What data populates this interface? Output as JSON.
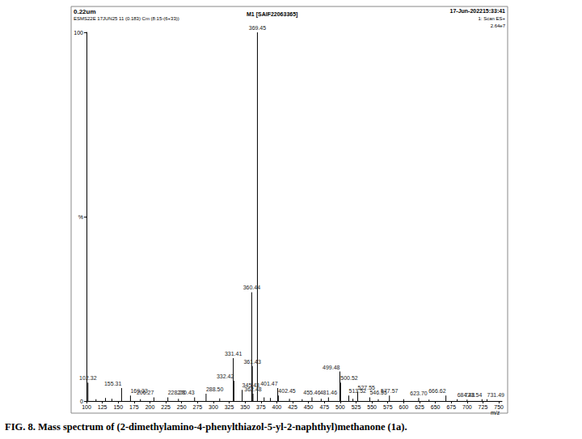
{
  "chart_data": {
    "type": "bar",
    "title": "M1 [SAIF22063365]",
    "annotations": [
      "0.22um",
      "ESMS22E 17JUN25 11 (0.183) Cm (8:15-(6+33))",
      "17-Jun-202215:33:41",
      "1: Scan ES+",
      "2.64e7"
    ],
    "caption": "FIG. 8. Mass spectrum of (2-dimethylamino-4-phenylthiazol-5-yl-2-naphthyl)methanone (1a).",
    "xlabel": "m/z",
    "x": [
      102.32,
      115,
      130,
      140,
      155.31,
      169.33,
      185,
      206.27,
      228.28,
      245,
      270.43,
      288.5,
      310,
      331.41,
      332.42,
      345.43,
      360.44,
      361.43,
      362.48,
      369.45,
      380,
      390,
      401.47,
      402.45,
      420,
      440,
      455.46,
      470,
      481.46,
      499.48,
      500.52,
      513.52,
      520,
      527.55,
      546.55,
      560,
      577.57,
      600,
      623.7,
      640,
      666.62,
      684.48,
      700,
      723.54,
      731.49
    ],
    "values": [
      5,
      0.5,
      0.8,
      0.6,
      3.5,
      1.5,
      0.5,
      1,
      1,
      0.6,
      1,
      2,
      0.7,
      11.6,
      5.5,
      3,
      29.5,
      9.5,
      2,
      100,
      1,
      0.8,
      3.5,
      1.5,
      0.6,
      0.5,
      1,
      0.6,
      1,
      8,
      5,
      1.5,
      0.6,
      2.5,
      1,
      0.5,
      1.5,
      0.5,
      0.8,
      0.4,
      1.5,
      0.5,
      0.4,
      0.5,
      0.5
    ],
    "point_labels": [
      "102.32",
      null,
      null,
      null,
      "155.31",
      "169.33",
      null,
      "206.27",
      "228.28",
      null,
      "270.43",
      "288.50",
      null,
      "331.41",
      "332.42",
      "345.43",
      "360.44",
      "361.43",
      "362.48",
      "369.45",
      null,
      null,
      "401.47",
      "402.45",
      null,
      null,
      "455.46",
      null,
      "481.46",
      "499.48",
      "500.52",
      "513.52",
      null,
      "527.55",
      "546.55",
      null,
      "577.57",
      null,
      "623.70",
      null,
      "666.62",
      "684.48",
      null,
      "723.54",
      "731.49"
    ],
    "color": "#000000",
    "xlim": [
      100,
      755
    ],
    "xticks": [
      100,
      125,
      150,
      175,
      200,
      225,
      250,
      275,
      300,
      325,
      350,
      375,
      400,
      425,
      450,
      475,
      500,
      525,
      550,
      575,
      600,
      625,
      650,
      675,
      700,
      725,
      750
    ],
    "ylim": [
      0,
      100
    ],
    "yticks": [
      0,
      {
        "value": 50,
        "label": "%"
      },
      100
    ],
    "grid": false
  }
}
